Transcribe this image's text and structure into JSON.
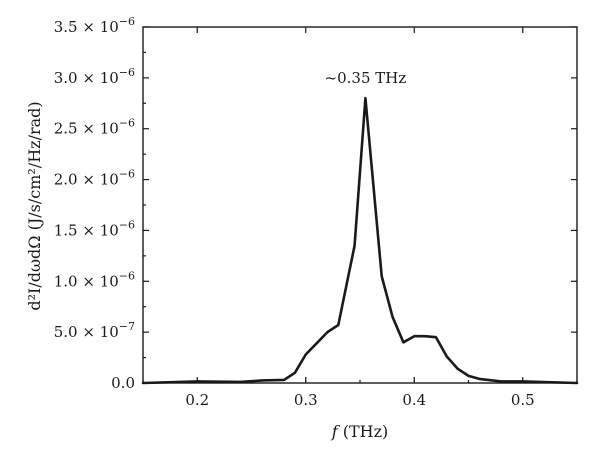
{
  "chart_data": {
    "type": "line",
    "xlabel_italic": "f",
    "xlabel_rest": " (THz)",
    "ylabel": "d²I/dωdΩ (J/s/cm²/Hz/rad)",
    "xlim": [
      0.15,
      0.55
    ],
    "ylim": [
      0,
      3.5e-06
    ],
    "x_ticks": [
      {
        "value": 0.2,
        "label": "0.2"
      },
      {
        "value": 0.3,
        "label": "0.3"
      },
      {
        "value": 0.4,
        "label": "0.4"
      },
      {
        "value": 0.5,
        "label": "0.5"
      }
    ],
    "y_ticks": [
      {
        "value": 0,
        "label": "0.0"
      },
      {
        "value": 5e-07,
        "label": "5.0 × 10",
        "exp": "−7"
      },
      {
        "value": 1e-06,
        "label": "1.0 × 10",
        "exp": "−6"
      },
      {
        "value": 1.5e-06,
        "label": "1.5 × 10",
        "exp": "−6"
      },
      {
        "value": 2e-06,
        "label": "2.0 × 10",
        "exp": "−6"
      },
      {
        "value": 2.5e-06,
        "label": "2.5 × 10",
        "exp": "−6"
      },
      {
        "value": 3e-06,
        "label": "3.0 × 10",
        "exp": "−6"
      },
      {
        "value": 3.5e-06,
        "label": "3.5 × 10",
        "exp": "−6"
      }
    ],
    "annotation": {
      "text": "~0.35 THz",
      "x": 0.355,
      "y": 2.95e-06
    },
    "series": [
      {
        "x": [
          0.15,
          0.2,
          0.24,
          0.26,
          0.28,
          0.29,
          0.3,
          0.31,
          0.32,
          0.33,
          0.345,
          0.355,
          0.37,
          0.38,
          0.39,
          0.4,
          0.41,
          0.42,
          0.43,
          0.44,
          0.45,
          0.46,
          0.48,
          0.5,
          0.55
        ],
        "y": [
          0,
          1.5e-08,
          1e-08,
          2.5e-08,
          3e-08,
          1e-07,
          2.8e-07,
          3.9e-07,
          5e-07,
          5.7e-07,
          1.35e-06,
          2.8e-06,
          1.05e-06,
          6.5e-07,
          4e-07,
          4.6e-07,
          4.6e-07,
          4.5e-07,
          2.6e-07,
          1.4e-07,
          7e-08,
          4e-08,
          1.5e-08,
          1.5e-08,
          0
        ]
      }
    ]
  }
}
